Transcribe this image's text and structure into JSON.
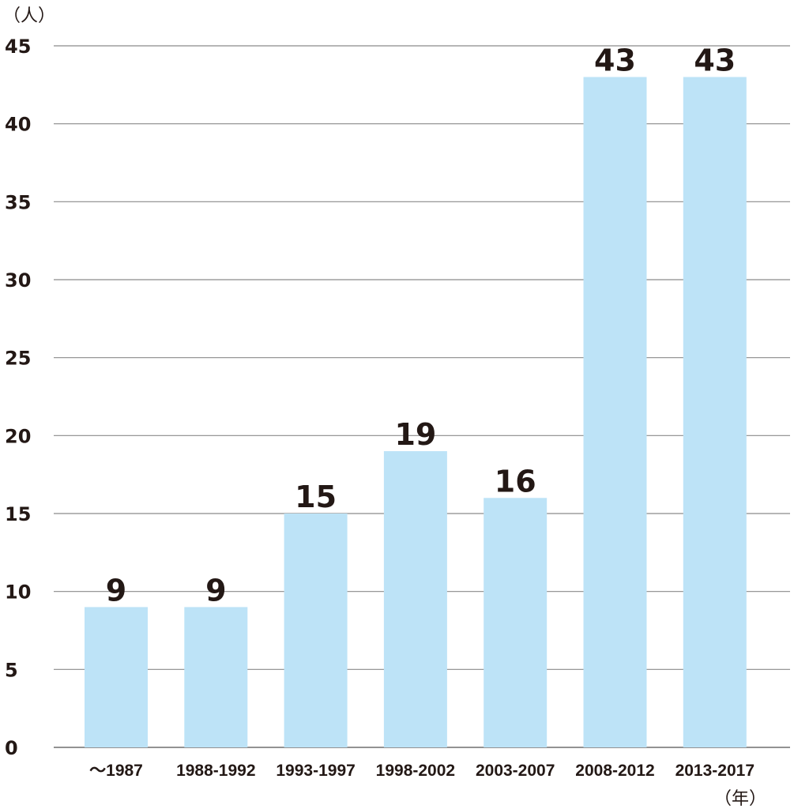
{
  "chart_data": {
    "type": "bar",
    "categories": [
      "～1987",
      "1988-1992",
      "1993-1997",
      "1998-2002",
      "2003-2007",
      "2008-2012",
      "2013-2017"
    ],
    "values": [
      9,
      9,
      15,
      19,
      16,
      43,
      43
    ],
    "data_labels": [
      "9",
      "9",
      "15",
      "19",
      "16",
      "43",
      "43"
    ],
    "y_ticks": [
      0,
      5,
      10,
      15,
      20,
      25,
      30,
      35,
      40,
      45
    ],
    "ylim": [
      0,
      45
    ],
    "ylabel": "（人）",
    "xlabel": "（年）",
    "title": "",
    "grid": true,
    "legend": "none",
    "bar_color": "#bde3f7",
    "grid_color": "#8a8a8a",
    "text_color": "#231815"
  }
}
